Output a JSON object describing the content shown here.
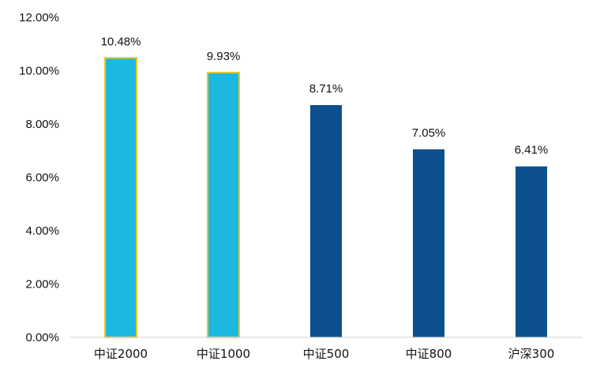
{
  "chart_data": {
    "type": "bar",
    "title": "",
    "xlabel": "",
    "ylabel": "",
    "categories": [
      "中证2000",
      "中证1000",
      "中证500",
      "中证800",
      "沪深300"
    ],
    "values": [
      10.48,
      9.93,
      8.71,
      7.05,
      6.41
    ],
    "data_labels": [
      "10.48%",
      "9.93%",
      "8.71%",
      "7.05%",
      "6.41%"
    ],
    "bar_colors": [
      "#1db8e0",
      "#1db8e0",
      "#0b4f8f",
      "#0b4f8f",
      "#0b4f8f"
    ],
    "bar_outline_colors": [
      "#e8c81e",
      "#e8c81e",
      null,
      null,
      null
    ],
    "ylim": [
      0,
      12
    ],
    "yticks": [
      0,
      2,
      4,
      6,
      8,
      10,
      12
    ],
    "ytick_labels": [
      "0.00%",
      "2.00%",
      "4.00%",
      "6.00%",
      "8.00%",
      "10.00%",
      "12.00%"
    ],
    "grid": false,
    "legend": "none"
  }
}
